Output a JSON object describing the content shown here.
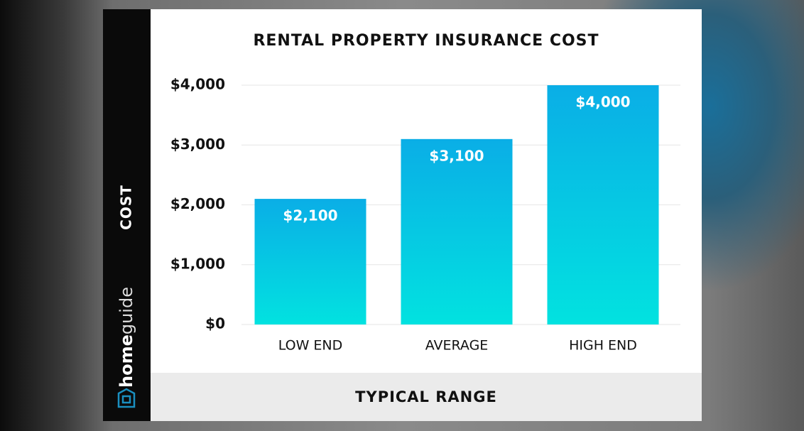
{
  "chart_data": {
    "type": "bar",
    "title": "RENTAL PROPERTY INSURANCE COST",
    "x_label": "TYPICAL RANGE",
    "y_label": "COST",
    "categories": [
      "LOW END",
      "AVERAGE",
      "HIGH END"
    ],
    "values": [
      2100,
      3100,
      4000
    ],
    "value_labels": [
      "$2,100",
      "$3,100",
      "$4,000"
    ],
    "color": "#0aaee6",
    "ylim": [
      0,
      4000
    ],
    "yticks": [
      {
        "value": 0,
        "label": "$0"
      },
      {
        "value": 1000,
        "label": "$1,000"
      },
      {
        "value": 2000,
        "label": "$2,000"
      },
      {
        "value": 3000,
        "label": "$3,000"
      },
      {
        "value": 4000,
        "label": "$4,000"
      }
    ],
    "grid": true
  },
  "brand": [
    "home",
    "guide"
  ]
}
